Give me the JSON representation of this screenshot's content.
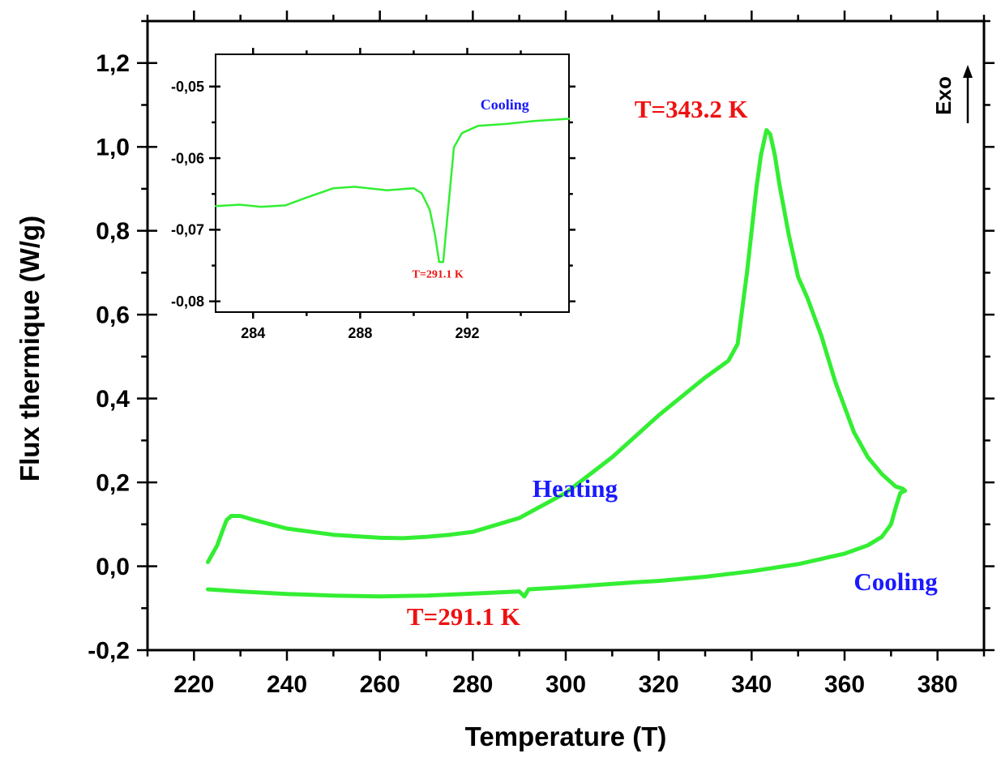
{
  "chart_data": [
    {
      "id": "main",
      "type": "line",
      "xlabel": "Temperature (T)",
      "ylabel": "Flux thermique (W/g)",
      "xlim": [
        210,
        390
      ],
      "ylim": [
        -0.2,
        1.3
      ],
      "x_ticks": [
        220,
        240,
        260,
        280,
        300,
        320,
        340,
        360,
        380
      ],
      "y_ticks": [
        -0.2,
        0.0,
        0.2,
        0.4,
        0.6,
        0.8,
        1.0,
        1.2
      ],
      "y_tick_labels": [
        "-0,2",
        "0,0",
        "0,2",
        "0,4",
        "0,6",
        "0,8",
        "1,0",
        "1,2"
      ],
      "grid": false,
      "line_color": "#33ee33",
      "series": [
        {
          "x": [
            223,
            224,
            225,
            226,
            227,
            228,
            230,
            233,
            240,
            250,
            260,
            265,
            270,
            275,
            280,
            290,
            300,
            310,
            320,
            330,
            335,
            337,
            339,
            341,
            342,
            343,
            343.2,
            344,
            345,
            346,
            348,
            350,
            352,
            355,
            358,
            360,
            362,
            365,
            368,
            371,
            372.5,
            373
          ],
          "y": [
            0.01,
            0.03,
            0.05,
            0.08,
            0.11,
            0.12,
            0.12,
            0.11,
            0.09,
            0.075,
            0.068,
            0.067,
            0.07,
            0.075,
            0.082,
            0.115,
            0.175,
            0.26,
            0.36,
            0.45,
            0.49,
            0.53,
            0.7,
            0.9,
            0.98,
            1.03,
            1.04,
            1.03,
            0.98,
            0.91,
            0.79,
            0.69,
            0.64,
            0.55,
            0.44,
            0.38,
            0.32,
            0.26,
            0.22,
            0.19,
            0.185,
            0.18
          ]
        },
        {
          "x": [
            373,
            372,
            371,
            370,
            368,
            365,
            360,
            350,
            340,
            330,
            320,
            315,
            310,
            300,
            292,
            291.1,
            290,
            280,
            270,
            260,
            250,
            240,
            230,
            223
          ],
          "y": [
            0.18,
            0.175,
            0.14,
            0.1,
            0.07,
            0.05,
            0.03,
            0.005,
            -0.012,
            -0.025,
            -0.035,
            -0.038,
            -0.042,
            -0.05,
            -0.055,
            -0.072,
            -0.06,
            -0.065,
            -0.07,
            -0.072,
            -0.07,
            -0.066,
            -0.06,
            -0.055
          ]
        }
      ],
      "annotations": [
        {
          "text": "Heating",
          "color": "#1a1aff",
          "x": 302,
          "y": 0.165
        },
        {
          "text": "T=343.2 K",
          "color": "#ee1111",
          "x": 327,
          "y": 1.07
        },
        {
          "text": "Cooling",
          "color": "#1a1aff",
          "x": 371,
          "y": -0.057
        },
        {
          "text": "T=291.1 K",
          "color": "#ee1111",
          "x": 278,
          "y": -0.14
        }
      ],
      "exo_label": "Exo"
    },
    {
      "id": "inset",
      "type": "line",
      "xlim": [
        282.6,
        295.8
      ],
      "ylim": [
        -0.0815,
        -0.0455
      ],
      "x_ticks": [
        284,
        288,
        292
      ],
      "y_ticks": [
        -0.05,
        -0.06,
        -0.07,
        -0.08
      ],
      "y_tick_labels": [
        "-0,05",
        "-0,06",
        "-0,07",
        "-0,08"
      ],
      "grid": false,
      "line_color": "#33ee33",
      "series": [
        {
          "x": [
            282.6,
            283.5,
            284.3,
            285.2,
            286.0,
            287.0,
            287.8,
            289.0,
            290.0,
            290.3,
            290.6,
            290.8,
            290.95,
            291.1,
            291.3,
            291.5,
            291.8,
            292.4,
            293.5,
            294.5,
            295.8
          ],
          "y": [
            -0.0667,
            -0.0665,
            -0.0668,
            -0.0666,
            -0.0655,
            -0.0642,
            -0.064,
            -0.0645,
            -0.0642,
            -0.0649,
            -0.0672,
            -0.0708,
            -0.0745,
            -0.0745,
            -0.0665,
            -0.0585,
            -0.0565,
            -0.0555,
            -0.0552,
            -0.0548,
            -0.0545
          ]
        }
      ],
      "annotations": [
        {
          "text": "Cooling",
          "color": "#1a1aff",
          "x": 293.4,
          "y": -0.0532
        },
        {
          "text": "T=291.1 K",
          "color": "#ee1111",
          "x": 290.9,
          "y": -0.0767
        }
      ]
    }
  ]
}
